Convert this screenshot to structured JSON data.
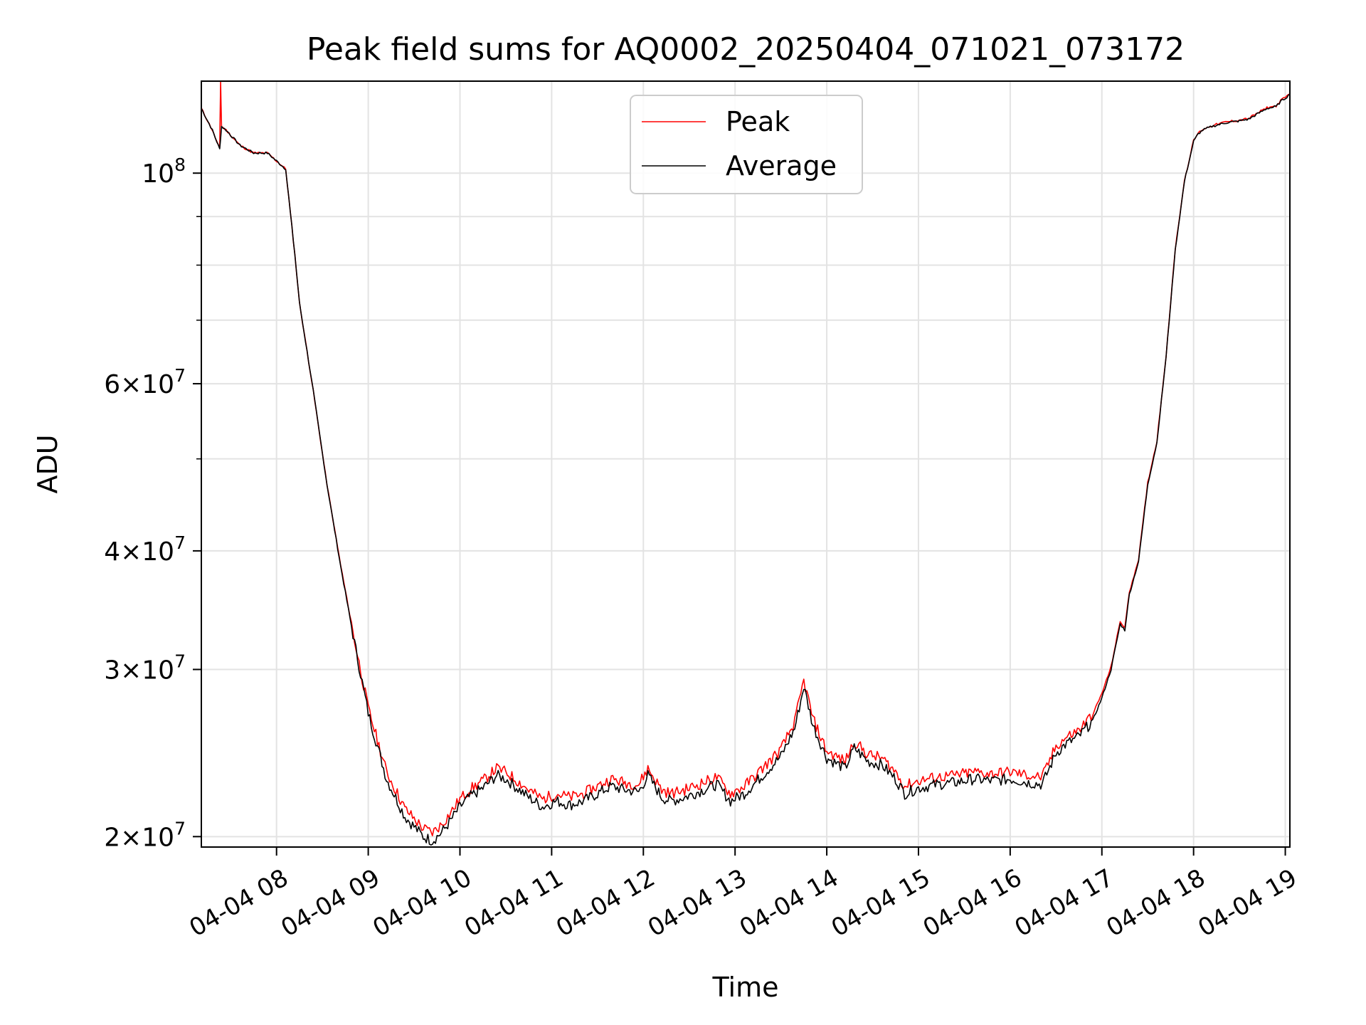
{
  "chart_data": {
    "type": "line",
    "title": "Peak field sums for AQ0002_20250404_071021_073172",
    "xlabel": "Time",
    "ylabel": "ADU",
    "yscale": "log",
    "xlim_hours": [
      7.18,
      19.05
    ],
    "ylim": [
      19500000,
      125000000
    ],
    "grid": true,
    "legend_position": "upper center",
    "x_ticks": [
      {
        "hour": 8,
        "label": "04-04 08"
      },
      {
        "hour": 9,
        "label": "04-04 09"
      },
      {
        "hour": 10,
        "label": "04-04 10"
      },
      {
        "hour": 11,
        "label": "04-04 11"
      },
      {
        "hour": 12,
        "label": "04-04 12"
      },
      {
        "hour": 13,
        "label": "04-04 13"
      },
      {
        "hour": 14,
        "label": "04-04 14"
      },
      {
        "hour": 15,
        "label": "04-04 15"
      },
      {
        "hour": 16,
        "label": "04-04 16"
      },
      {
        "hour": 17,
        "label": "04-04 17"
      },
      {
        "hour": 18,
        "label": "04-04 18"
      },
      {
        "hour": 19,
        "label": "04-04 19"
      }
    ],
    "y_major_ticks": [
      {
        "value": 100000000,
        "base": "10",
        "exp": "8",
        "mant": ""
      },
      {
        "value": 60000000,
        "base": "10",
        "exp": "7",
        "mant": "6"
      },
      {
        "value": 40000000,
        "base": "10",
        "exp": "7",
        "mant": "4"
      },
      {
        "value": 30000000,
        "base": "10",
        "exp": "7",
        "mant": "3"
      },
      {
        "value": 20000000,
        "base": "10",
        "exp": "7",
        "mant": "2"
      }
    ],
    "y_minor_ticks": [
      90000000,
      80000000,
      70000000,
      50000000
    ],
    "series": [
      {
        "name": "Average",
        "color": "#000000",
        "hours": [
          7.18,
          7.3,
          7.38,
          7.4,
          7.45,
          7.6,
          7.75,
          7.9,
          8.0,
          8.1,
          8.2,
          8.25,
          8.4,
          8.55,
          8.7,
          8.85,
          9.0,
          9.2,
          9.4,
          9.6,
          9.7,
          9.8,
          9.9,
          10.0,
          10.1,
          10.25,
          10.4,
          10.5,
          10.6,
          10.75,
          10.9,
          11.05,
          11.2,
          11.35,
          11.5,
          11.65,
          11.8,
          11.95,
          12.05,
          12.2,
          12.3,
          12.45,
          12.6,
          12.8,
          12.95,
          13.1,
          13.3,
          13.5,
          13.65,
          13.75,
          13.85,
          14.0,
          14.2,
          14.3,
          14.45,
          14.6,
          14.75,
          14.85,
          15.0,
          15.2,
          15.4,
          15.6,
          15.8,
          16.0,
          16.2,
          16.35,
          16.5,
          16.6,
          16.75,
          16.9,
          17.0,
          17.1,
          17.2,
          17.25,
          17.3,
          17.4,
          17.5,
          17.6,
          17.7,
          17.8,
          17.9,
          18.0,
          18.05,
          18.1,
          18.2,
          18.35,
          18.5,
          18.6,
          18.7,
          18.8,
          18.9,
          18.95,
          19.05
        ],
        "values": [
          117000000,
          111000000,
          106000000,
          112000000,
          111000000,
          107000000,
          105000000,
          105000000,
          103000000,
          101000000,
          82000000,
          73000000,
          59000000,
          47000000,
          38500000,
          32000000,
          27000000,
          23000000,
          21000000,
          20000000,
          19800000,
          20200000,
          20800000,
          21500000,
          22000000,
          22500000,
          23200000,
          23000000,
          22600000,
          22000000,
          21500000,
          21800000,
          21600000,
          21800000,
          22200000,
          22600000,
          22400000,
          22300000,
          23200000,
          22000000,
          21800000,
          22000000,
          22300000,
          22700000,
          21800000,
          22200000,
          23200000,
          24300000,
          26000000,
          28800000,
          26200000,
          24200000,
          23600000,
          24800000,
          24000000,
          23800000,
          23000000,
          22200000,
          22500000,
          22700000,
          22800000,
          23000000,
          22900000,
          23000000,
          22800000,
          22700000,
          24500000,
          25000000,
          25500000,
          26500000,
          28000000,
          30000000,
          33500000,
          33000000,
          36000000,
          39000000,
          47000000,
          52000000,
          64000000,
          83000000,
          98000000,
          108000000,
          110000000,
          111000000,
          112000000,
          113000000,
          113500000,
          114000000,
          115500000,
          117000000,
          117500000,
          119000000,
          121000000
        ]
      },
      {
        "name": "Peak",
        "color": "#ff0000",
        "hours": [
          7.18,
          7.3,
          7.38,
          7.39,
          7.4,
          7.45,
          7.6,
          7.75,
          7.9,
          8.0,
          8.1,
          8.2,
          8.25,
          8.4,
          8.55,
          8.7,
          8.85,
          9.0,
          9.2,
          9.4,
          9.6,
          9.7,
          9.8,
          9.9,
          10.0,
          10.1,
          10.25,
          10.4,
          10.5,
          10.6,
          10.75,
          10.9,
          11.05,
          11.2,
          11.35,
          11.5,
          11.65,
          11.8,
          11.95,
          12.05,
          12.2,
          12.3,
          12.45,
          12.6,
          12.8,
          12.95,
          13.1,
          13.3,
          13.5,
          13.65,
          13.75,
          13.85,
          14.0,
          14.2,
          14.3,
          14.45,
          14.6,
          14.75,
          14.85,
          15.0,
          15.2,
          15.4,
          15.6,
          15.8,
          16.0,
          16.2,
          16.35,
          16.5,
          16.6,
          16.75,
          16.9,
          17.0,
          17.1,
          17.2,
          17.25,
          17.3,
          17.4,
          17.5,
          17.6,
          17.7,
          17.8,
          17.9,
          18.0,
          18.05,
          18.1,
          18.2,
          18.35,
          18.5,
          18.6,
          18.7,
          18.8,
          18.9,
          18.95,
          19.05
        ],
        "values": [
          117000000,
          111000000,
          106000000,
          125000000,
          112000000,
          111000000,
          107000000,
          105000000,
          105000000,
          103000000,
          101000000,
          82000000,
          73000000,
          59000000,
          47000000,
          38600000,
          32200000,
          27300000,
          23400000,
          21400000,
          20400000,
          20200000,
          20600000,
          21200000,
          21900000,
          22400000,
          22900000,
          23600000,
          23400000,
          23000000,
          22400000,
          21900000,
          22200000,
          22000000,
          22200000,
          22600000,
          23000000,
          22800000,
          22700000,
          23600000,
          22400000,
          22200000,
          22400000,
          22700000,
          23100000,
          22200000,
          22600000,
          23600000,
          24700000,
          26400000,
          29200000,
          26600000,
          24600000,
          24000000,
          25200000,
          24400000,
          24200000,
          23400000,
          22600000,
          22900000,
          23100000,
          23200000,
          23400000,
          23300000,
          23400000,
          23200000,
          23100000,
          24900000,
          25400000,
          25900000,
          26900000,
          28300000,
          30200000,
          33700000,
          33200000,
          36200000,
          39200000,
          47200000,
          52200000,
          64200000,
          83200000,
          98200000,
          108200000,
          110200000,
          111200000,
          112200000,
          113200000,
          113700000,
          114200000,
          115700000,
          117200000,
          117700000,
          119200000,
          121200000
        ]
      }
    ],
    "legend": [
      {
        "name": "Peak",
        "color": "#ff0000"
      },
      {
        "name": "Average",
        "color": "#000000"
      }
    ]
  }
}
